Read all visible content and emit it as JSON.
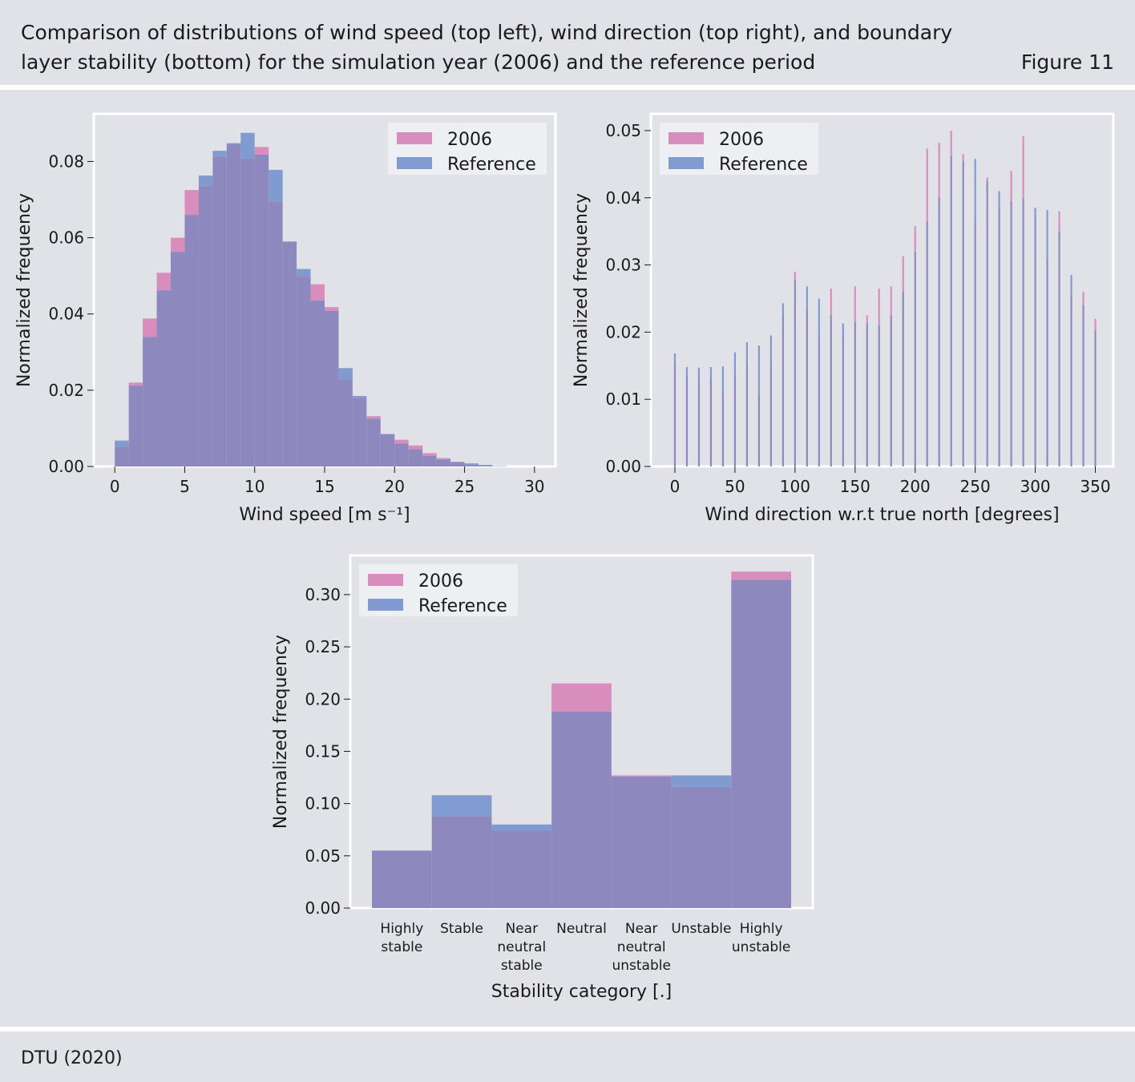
{
  "header": {
    "title": "Comparison of distributions of wind speed (top left), wind direction (top right), and boundary layer stability (bottom) for the simulation year (2006) and the reference period",
    "figure_label": "Figure 11"
  },
  "footer": {
    "source": "DTU (2020)"
  },
  "colors": {
    "series_2006": "#d88dbd",
    "series_reference": "#7f9bcf",
    "overlap": "#8d89be",
    "background": "#e1e2e8",
    "plot_frame": "#ffffff"
  },
  "chart_data": [
    {
      "id": "wind_speed",
      "type": "histogram",
      "title": "",
      "xlabel": "Wind speed [m s⁻¹]",
      "ylabel": "Normalized frequency",
      "xlim": [
        -1.5,
        31.5
      ],
      "ylim": [
        0,
        0.0925
      ],
      "xticks": [
        0,
        5,
        10,
        15,
        20,
        25,
        30
      ],
      "yticks": [
        0,
        0.02,
        0.04,
        0.06,
        0.08
      ],
      "ytick_labels": [
        "0.00",
        "0.02",
        "0.04",
        "0.06",
        "0.08"
      ],
      "grid": false,
      "legend_position": "top-right",
      "bin_width": 1,
      "bin_starts": [
        0,
        1,
        2,
        3,
        4,
        5,
        6,
        7,
        8,
        9,
        10,
        11,
        12,
        13,
        14,
        15,
        16,
        17,
        18,
        19,
        20,
        21,
        22,
        23,
        24,
        25,
        26,
        27,
        28,
        29,
        30
      ],
      "series": [
        {
          "name": "2006",
          "values": [
            0.0052,
            0.022,
            0.0388,
            0.0508,
            0.06,
            0.0725,
            0.0735,
            0.0813,
            0.0845,
            0.0808,
            0.0838,
            0.0695,
            0.059,
            0.0498,
            0.0478,
            0.0418,
            0.0228,
            0.018,
            0.0132,
            0.0085,
            0.007,
            0.0055,
            0.0035,
            0.0022,
            0.0012,
            0.0004,
            0.0002,
            0,
            0,
            0,
            0
          ]
        },
        {
          "name": "Reference",
          "values": [
            0.0068,
            0.0212,
            0.034,
            0.0462,
            0.0563,
            0.066,
            0.0763,
            0.0828,
            0.0848,
            0.0875,
            0.0818,
            0.0778,
            0.059,
            0.0518,
            0.0435,
            0.0408,
            0.0258,
            0.0185,
            0.0125,
            0.0085,
            0.006,
            0.0045,
            0.0028,
            0.0018,
            0.0012,
            0.0008,
            0.0004,
            0.0001,
            0,
            0,
            0
          ]
        }
      ]
    },
    {
      "id": "wind_direction",
      "type": "histogram",
      "title": "",
      "xlabel": "Wind direction w.r.t true north [degrees]",
      "ylabel": "Normalized frequency",
      "xlim": [
        -20,
        365
      ],
      "ylim": [
        0,
        0.0525
      ],
      "xticks": [
        0,
        50,
        100,
        150,
        200,
        250,
        300,
        350
      ],
      "yticks": [
        0,
        0.01,
        0.02,
        0.03,
        0.04,
        0.05
      ],
      "ytick_labels": [
        "0.00",
        "0.01",
        "0.02",
        "0.03",
        "0.04",
        "0.05"
      ],
      "grid": false,
      "legend_position": "top-left",
      "x": [
        0,
        10,
        20,
        30,
        40,
        50,
        60,
        70,
        80,
        90,
        100,
        110,
        120,
        130,
        140,
        150,
        160,
        170,
        180,
        190,
        200,
        210,
        220,
        230,
        240,
        250,
        260,
        270,
        280,
        290,
        300,
        310,
        320,
        330,
        340,
        350
      ],
      "series": [
        {
          "name": "2006",
          "values": [
            0.0155,
            0.0135,
            0.013,
            0.013,
            0.011,
            0.0135,
            0.0155,
            0.0105,
            0.0155,
            0.0225,
            0.029,
            0.0235,
            0.0195,
            0.0265,
            0.0195,
            0.0268,
            0.0225,
            0.0265,
            0.0268,
            0.0313,
            0.0358,
            0.0473,
            0.0482,
            0.05,
            0.0465,
            0.0365,
            0.043,
            0.0385,
            0.044,
            0.0492,
            0.0375,
            0.031,
            0.038,
            0.0255,
            0.026,
            0.022
          ]
        },
        {
          "name": "Reference",
          "values": [
            0.0168,
            0.0148,
            0.0147,
            0.0148,
            0.0149,
            0.017,
            0.0185,
            0.018,
            0.0195,
            0.0243,
            0.0278,
            0.0268,
            0.025,
            0.0225,
            0.0213,
            0.0215,
            0.0213,
            0.021,
            0.0225,
            0.026,
            0.032,
            0.0365,
            0.04,
            0.0462,
            0.0455,
            0.0458,
            0.0425,
            0.041,
            0.0395,
            0.04,
            0.0385,
            0.0382,
            0.035,
            0.0285,
            0.024,
            0.0202
          ]
        }
      ]
    },
    {
      "id": "stability",
      "type": "bar",
      "title": "",
      "xlabel": "Stability category [.]",
      "ylabel": "Normalized frequency",
      "ylim": [
        0,
        0.3375
      ],
      "yticks": [
        0,
        0.05,
        0.1,
        0.15,
        0.2,
        0.25,
        0.3
      ],
      "ytick_labels": [
        "0.00",
        "0.05",
        "0.10",
        "0.15",
        "0.20",
        "0.25",
        "0.30"
      ],
      "grid": false,
      "legend_position": "top-left",
      "categories": [
        [
          "Highly",
          "stable"
        ],
        [
          "Stable"
        ],
        [
          "Near",
          "neutral",
          "stable"
        ],
        [
          "Neutral"
        ],
        [
          "Near",
          "neutral",
          "unstable"
        ],
        [
          "Unstable"
        ],
        [
          "Highly",
          "unstable"
        ]
      ],
      "series": [
        {
          "name": "2006",
          "values": [
            0.055,
            0.088,
            0.074,
            0.215,
            0.127,
            0.116,
            0.322
          ]
        },
        {
          "name": "Reference",
          "values": [
            0.055,
            0.108,
            0.08,
            0.188,
            0.126,
            0.127,
            0.314
          ]
        }
      ]
    }
  ]
}
